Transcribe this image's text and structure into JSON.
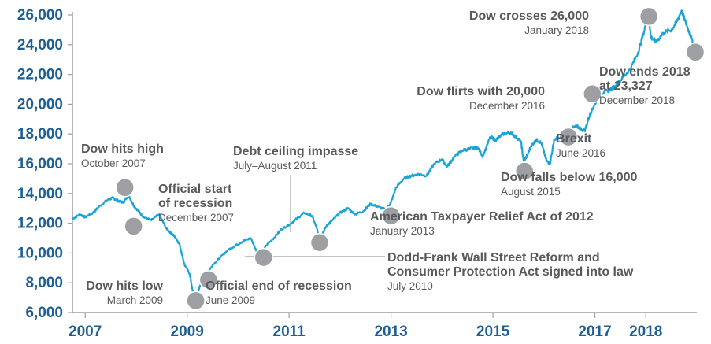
{
  "chart_data": {
    "type": "line",
    "title": "",
    "xlabel": "",
    "ylabel": "",
    "ylim": [
      6000,
      26000
    ],
    "xlim": [
      2006.75,
      2019.0
    ],
    "grid": false,
    "line_color": "#1aa3d9",
    "marker_color": "#9d9fa2",
    "y_ticks": [
      6000,
      8000,
      10000,
      12000,
      14000,
      16000,
      18000,
      20000,
      22000,
      24000,
      26000
    ],
    "y_tick_labels": [
      "6,000",
      "8,000",
      "10,000",
      "12,000",
      "14,000",
      "16,000",
      "18,000",
      "20,000",
      "22,000",
      "24,000",
      "26,000"
    ],
    "x_ticks": [
      2007,
      2009,
      2011,
      2013,
      2015,
      2017,
      2018
    ],
    "x_tick_labels": [
      "2007",
      "2009",
      "2011",
      "2013",
      "2015",
      "2017",
      "2018"
    ],
    "series": [
      {
        "x": [
          2006.75,
          2006.9,
          2007.0,
          2007.15,
          2007.3,
          2007.45,
          2007.55,
          2007.65,
          2007.75,
          2007.85,
          2007.95,
          2008.05,
          2008.15,
          2008.3,
          2008.45,
          2008.6,
          2008.7,
          2008.78,
          2008.85,
          2008.95,
          2009.05,
          2009.12,
          2009.17,
          2009.25,
          2009.35,
          2009.5,
          2009.65,
          2009.8,
          2009.95,
          2010.1,
          2010.25,
          2010.35,
          2010.45,
          2010.55,
          2010.7,
          2010.85,
          2011.0,
          2011.15,
          2011.3,
          2011.45,
          2011.55,
          2011.6,
          2011.65,
          2011.75,
          2011.85,
          2012.0,
          2012.15,
          2012.3,
          2012.45,
          2012.6,
          2012.75,
          2012.9,
          2013.0,
          2013.1,
          2013.25,
          2013.4,
          2013.55,
          2013.7,
          2013.85,
          2014.0,
          2014.1,
          2014.25,
          2014.4,
          2014.55,
          2014.7,
          2014.8,
          2014.95,
          2015.05,
          2015.2,
          2015.35,
          2015.45,
          2015.55,
          2015.6,
          2015.65,
          2015.75,
          2015.85,
          2015.95,
          2016.05,
          2016.12,
          2016.2,
          2016.35,
          2016.48,
          2016.55,
          2016.65,
          2016.8,
          2016.9,
          2016.97,
          2017.1,
          2017.25,
          2017.4,
          2017.55,
          2017.7,
          2017.85,
          2017.95,
          2018.05,
          2018.1,
          2018.2,
          2018.35,
          2018.5,
          2018.6,
          2018.7,
          2018.8,
          2018.9,
          2018.97
        ],
        "y": [
          12300,
          12600,
          12400,
          12700,
          13200,
          13600,
          13700,
          13500,
          13400,
          13900,
          13200,
          12800,
          12400,
          12200,
          12600,
          11600,
          11300,
          11000,
          10600,
          9200,
          8600,
          7200,
          6600,
          7800,
          8400,
          9200,
          9700,
          10200,
          10500,
          10800,
          11000,
          10200,
          9900,
          10500,
          11000,
          11600,
          11900,
          12300,
          12700,
          12500,
          11600,
          10700,
          11300,
          11900,
          12200,
          12700,
          13000,
          12600,
          12800,
          13300,
          13100,
          12900,
          13400,
          14400,
          15000,
          15200,
          15300,
          15200,
          16000,
          16300,
          15800,
          16500,
          16900,
          17000,
          17100,
          16500,
          17800,
          17600,
          18000,
          18100,
          17800,
          17500,
          16200,
          16400,
          17200,
          17600,
          17400,
          16200,
          16000,
          17600,
          17900,
          17900,
          18400,
          18500,
          18200,
          19300,
          19800,
          20700,
          20900,
          21200,
          21800,
          22400,
          23500,
          24700,
          26100,
          24500,
          24200,
          24800,
          25000,
          25500,
          26300,
          25300,
          24400,
          23327
        ]
      }
    ],
    "annotations": [
      {
        "title": "Dow hits high",
        "date": "October 2007",
        "x": 2007.78,
        "y": 14400
      },
      {
        "title": "Official start\nof recession",
        "date": "December 2007",
        "x": 2007.95,
        "y": 11800
      },
      {
        "title": "Dow hits low",
        "date": "March 2009",
        "x": 2009.17,
        "y": 6800
      },
      {
        "title": "Official end of recession",
        "date": "June 2009",
        "x": 2009.42,
        "y": 8200
      },
      {
        "title": "Dodd-Frank Wall Street Reform and\nConsumer Protection Act signed into law",
        "date": "July 2010",
        "x": 2010.5,
        "y": 9700
      },
      {
        "title": "Debt ceiling impasse",
        "date": "July–August 2011",
        "x": 2011.6,
        "y": 10700
      },
      {
        "title": "American Taxpayer Relief Act of 2012",
        "date": "January 2013",
        "x": 2013.0,
        "y": 12500
      },
      {
        "title": "Dow falls below 16,000",
        "date": "August 2015",
        "x": 2015.62,
        "y": 15500
      },
      {
        "title": "Brexit",
        "date": "June 2016",
        "x": 2016.48,
        "y": 17800
      },
      {
        "title": "Dow flirts with 20,000",
        "date": "December 2016",
        "x": 2016.95,
        "y": 20700
      },
      {
        "title": "Dow crosses 26,000",
        "date": "January 2018",
        "x": 2018.06,
        "y": 25900
      },
      {
        "title": "Dow ends 2018\nat 23,327",
        "date": "December 2018",
        "x": 2018.97,
        "y": 23500
      }
    ]
  }
}
